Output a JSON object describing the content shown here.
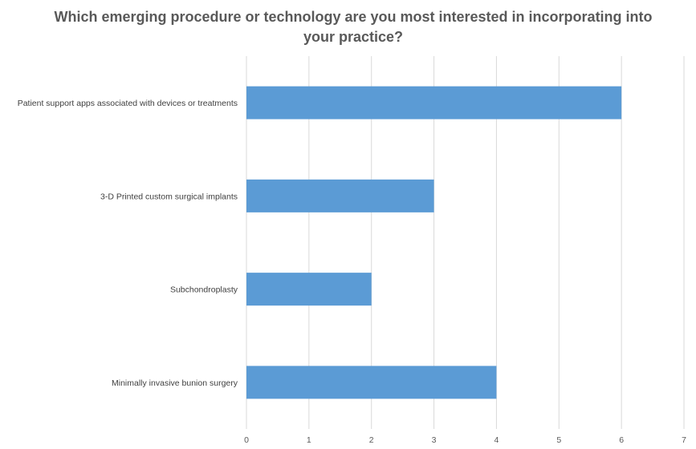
{
  "chart_data": {
    "type": "bar",
    "orientation": "horizontal",
    "title": "Which emerging procedure or technology are you most interested in incorporating into your practice?",
    "categories": [
      "Patient support apps associated with devices or treatments",
      "3-D Printed custom surgical implants",
      "Subchondroplasty",
      "Minimally invasive bunion surgery"
    ],
    "values": [
      6,
      3,
      2,
      4
    ],
    "xlim": [
      0,
      7
    ],
    "xticks": [
      0,
      1,
      2,
      3,
      4,
      5,
      6,
      7
    ],
    "grid": true,
    "legend": "none",
    "bar_color": "#5B9BD5",
    "grid_color": "#D9D9D9"
  }
}
